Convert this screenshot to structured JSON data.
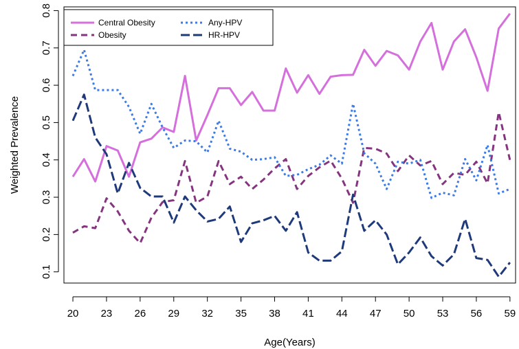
{
  "chart_data": {
    "type": "line",
    "xlabel": "Age(Years)",
    "ylabel": "Weighted Prevalence",
    "x_ticks": [
      20,
      23,
      26,
      29,
      32,
      35,
      38,
      41,
      44,
      47,
      50,
      53,
      56,
      59
    ],
    "x_tick_labels": [
      "20",
      "23",
      "26",
      "29",
      "32",
      "35",
      "38",
      "41",
      "44",
      "47",
      "50",
      "53",
      "56",
      "59"
    ],
    "y_ticks": [
      0.1,
      0.2,
      0.3,
      0.4,
      0.5,
      0.6,
      0.7,
      0.8
    ],
    "y_tick_labels": [
      "0.1",
      "0.2",
      "0.3",
      "0.4",
      "0.5",
      "0.6",
      "0.7",
      "0.8"
    ],
    "xlim": [
      19.2,
      59.5
    ],
    "ylim": [
      0.07,
      0.81
    ],
    "grid": false,
    "legend_position": "top-left",
    "x": [
      20,
      21,
      22,
      23,
      24,
      25,
      26,
      27,
      28,
      29,
      30,
      31,
      32,
      33,
      34,
      35,
      36,
      37,
      38,
      39,
      40,
      41,
      42,
      43,
      44,
      45,
      46,
      47,
      48,
      49,
      50,
      51,
      52,
      53,
      54,
      55,
      56,
      57,
      58,
      59
    ],
    "series": [
      {
        "name": "Central Obesity",
        "color": "#d46fdb",
        "dash": "solid",
        "values": [
          0.355,
          0.402,
          0.342,
          0.437,
          0.425,
          0.355,
          0.447,
          0.457,
          0.487,
          0.475,
          0.625,
          0.452,
          0.52,
          0.592,
          0.592,
          0.547,
          0.582,
          0.532,
          0.532,
          0.645,
          0.58,
          0.627,
          0.577,
          0.623,
          0.627,
          0.628,
          0.695,
          0.652,
          0.692,
          0.68,
          0.642,
          0.717,
          0.767,
          0.642,
          0.717,
          0.75,
          0.675,
          0.585,
          0.752,
          0.792
        ]
      },
      {
        "name": "Obesity",
        "color": "#85357f",
        "dash": "dash",
        "values": [
          0.205,
          0.222,
          0.217,
          0.297,
          0.262,
          0.21,
          0.177,
          0.245,
          0.287,
          0.292,
          0.397,
          0.285,
          0.302,
          0.397,
          0.335,
          0.355,
          0.322,
          0.347,
          0.377,
          0.402,
          0.322,
          0.357,
          0.38,
          0.398,
          0.35,
          0.285,
          0.432,
          0.43,
          0.417,
          0.37,
          0.412,
          0.385,
          0.397,
          0.335,
          0.365,
          0.36,
          0.395,
          0.337,
          0.528,
          0.4
        ]
      },
      {
        "name": "Any-HPV",
        "color": "#3c7be6",
        "dash": "dot",
        "values": [
          0.625,
          0.695,
          0.587,
          0.587,
          0.587,
          0.542,
          0.47,
          0.55,
          0.487,
          0.432,
          0.452,
          0.45,
          0.42,
          0.505,
          0.43,
          0.422,
          0.4,
          0.402,
          0.407,
          0.357,
          0.36,
          0.375,
          0.387,
          0.412,
          0.39,
          0.55,
          0.418,
          0.39,
          0.322,
          0.395,
          0.39,
          0.4,
          0.298,
          0.312,
          0.305,
          0.402,
          0.345,
          0.44,
          0.31,
          0.322
        ]
      },
      {
        "name": "HR-HPV",
        "color": "#1f3a7a",
        "dash": "longdash",
        "values": [
          0.505,
          0.575,
          0.46,
          0.415,
          0.31,
          0.392,
          0.325,
          0.302,
          0.302,
          0.232,
          0.302,
          0.265,
          0.235,
          0.242,
          0.275,
          0.18,
          0.23,
          0.238,
          0.25,
          0.21,
          0.26,
          0.152,
          0.13,
          0.13,
          0.155,
          0.307,
          0.21,
          0.238,
          0.2,
          0.12,
          0.152,
          0.192,
          0.142,
          0.117,
          0.147,
          0.242,
          0.137,
          0.132,
          0.087,
          0.125
        ]
      }
    ]
  }
}
